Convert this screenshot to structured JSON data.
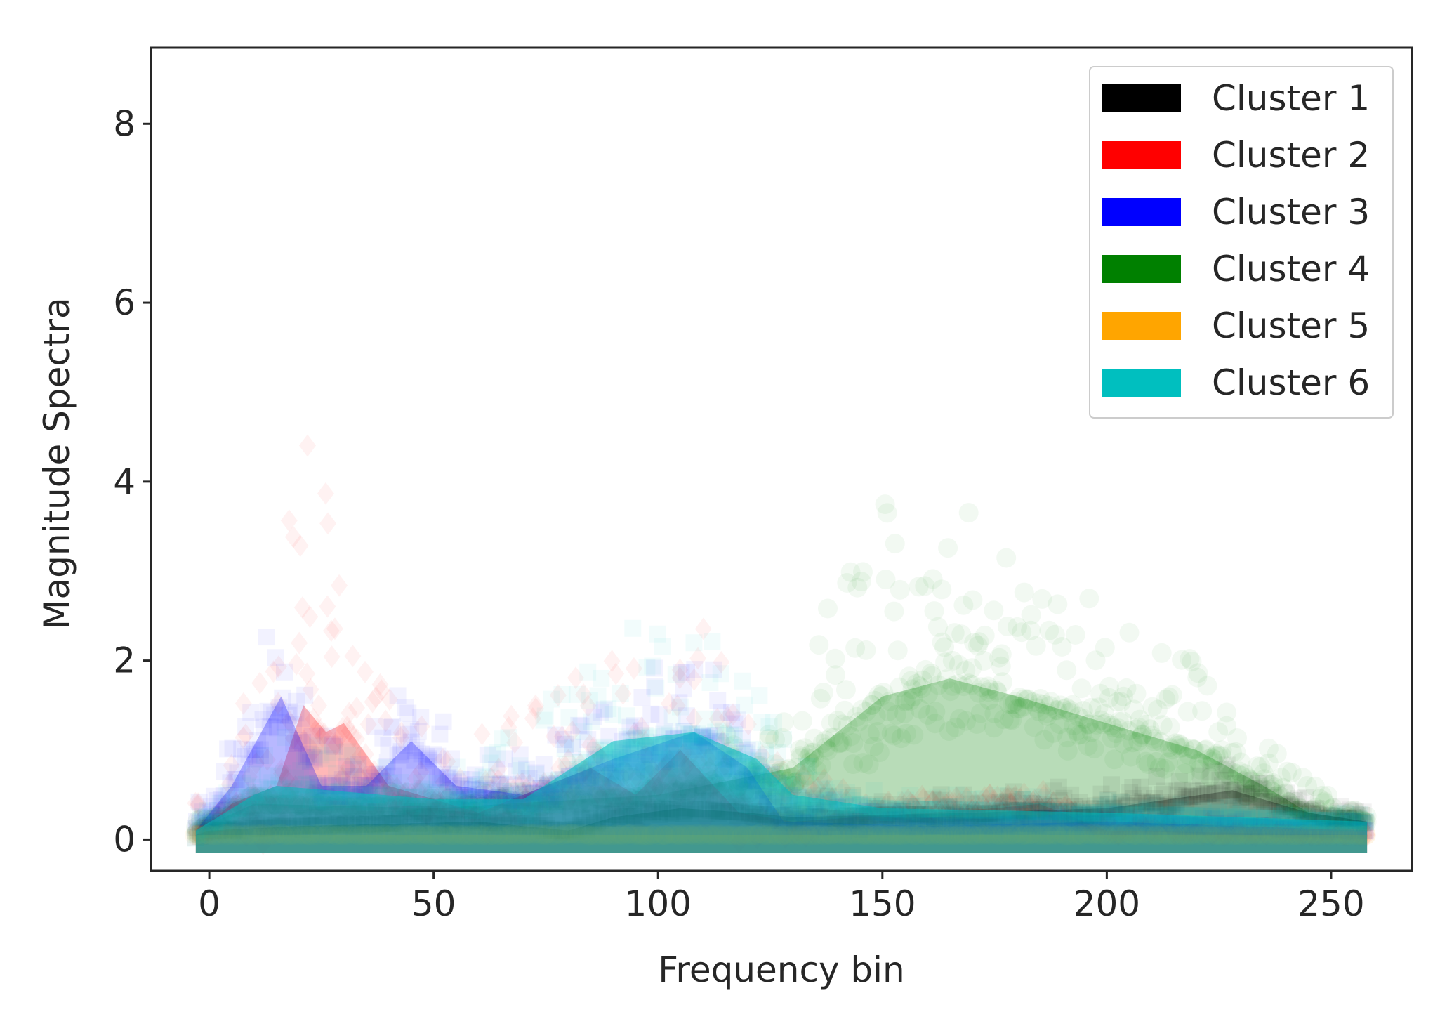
{
  "chart_data": {
    "type": "scatter",
    "xlabel": "Frequency bin",
    "ylabel": "Magnitude Spectra",
    "xlim": [
      -13,
      268
    ],
    "ylim": [
      -0.35,
      8.85
    ],
    "xticks": [
      0,
      50,
      100,
      150,
      200,
      250
    ],
    "yticks": [
      0,
      2,
      4,
      6,
      8
    ],
    "grid": false,
    "legend_position": "top-right",
    "series": [
      {
        "name": "Cluster 1",
        "color": "#000000",
        "marker": "square",
        "profile": [
          [
            -3,
            0.05
          ],
          [
            0,
            0.1
          ],
          [
            20,
            0.15
          ],
          [
            60,
            0.2
          ],
          [
            80,
            0.1
          ],
          [
            90,
            0.25
          ],
          [
            105,
            0.35
          ],
          [
            120,
            0.3
          ],
          [
            130,
            0.25
          ],
          [
            170,
            0.3
          ],
          [
            200,
            0.35
          ],
          [
            228,
            0.55
          ],
          [
            245,
            0.3
          ],
          [
            258,
            0.2
          ]
        ],
        "spread": [
          [
            0,
            0.1
          ],
          [
            100,
            0.2
          ],
          [
            228,
            0.3
          ],
          [
            258,
            0.1
          ]
        ]
      },
      {
        "name": "Cluster 2",
        "color": "#ff0000",
        "marker": "diamond",
        "profile": [
          [
            -3,
            0.05
          ],
          [
            5,
            0.4
          ],
          [
            15,
            0.6
          ],
          [
            21,
            1.5
          ],
          [
            26,
            1.2
          ],
          [
            30,
            1.3
          ],
          [
            40,
            0.6
          ],
          [
            60,
            0.3
          ],
          [
            85,
            0.8
          ],
          [
            95,
            0.5
          ],
          [
            105,
            1.0
          ],
          [
            118,
            0.3
          ],
          [
            130,
            0.2
          ],
          [
            175,
            0.35
          ],
          [
            185,
            0.4
          ],
          [
            200,
            0.1
          ],
          [
            258,
            0.05
          ]
        ],
        "spread": [
          [
            0,
            0.4
          ],
          [
            21,
            3.5
          ],
          [
            30,
            2.0
          ],
          [
            45,
            0.8
          ],
          [
            85,
            1.2
          ],
          [
            105,
            2.0
          ],
          [
            125,
            0.8
          ],
          [
            150,
            0.2
          ],
          [
            258,
            0.1
          ]
        ]
      },
      {
        "name": "Cluster 3",
        "color": "#0000ff",
        "marker": "square",
        "profile": [
          [
            -3,
            0.1
          ],
          [
            5,
            0.6
          ],
          [
            16,
            1.6
          ],
          [
            25,
            0.6
          ],
          [
            35,
            0.6
          ],
          [
            45,
            1.1
          ],
          [
            55,
            0.6
          ],
          [
            70,
            0.5
          ],
          [
            90,
            0.9
          ],
          [
            108,
            1.2
          ],
          [
            120,
            0.8
          ],
          [
            128,
            0.2
          ],
          [
            160,
            0.15
          ],
          [
            200,
            0.2
          ],
          [
            258,
            0.1
          ]
        ],
        "spread": [
          [
            0,
            0.3
          ],
          [
            16,
            1.2
          ],
          [
            30,
            0.4
          ],
          [
            45,
            0.8
          ],
          [
            60,
            0.4
          ],
          [
            90,
            0.8
          ],
          [
            108,
            1.0
          ],
          [
            125,
            0.4
          ],
          [
            160,
            0.1
          ],
          [
            258,
            0.1
          ]
        ]
      },
      {
        "name": "Cluster 4",
        "color": "#008000",
        "marker": "circle",
        "profile": [
          [
            -3,
            0.1
          ],
          [
            10,
            0.4
          ],
          [
            50,
            0.35
          ],
          [
            100,
            0.5
          ],
          [
            130,
            0.8
          ],
          [
            150,
            1.6
          ],
          [
            165,
            1.8
          ],
          [
            180,
            1.6
          ],
          [
            200,
            1.3
          ],
          [
            220,
            1.0
          ],
          [
            235,
            0.6
          ],
          [
            245,
            0.3
          ],
          [
            258,
            0.2
          ]
        ],
        "spread": [
          [
            0,
            0.1
          ],
          [
            100,
            0.3
          ],
          [
            130,
            0.8
          ],
          [
            145,
            2.2
          ],
          [
            165,
            2.0
          ],
          [
            185,
            1.6
          ],
          [
            205,
            1.2
          ],
          [
            225,
            0.9
          ],
          [
            240,
            0.5
          ],
          [
            258,
            0.1
          ]
        ]
      },
      {
        "name": "Cluster 5",
        "color": "#ffa500",
        "marker": "circle",
        "profile": [
          [
            -3,
            0.05
          ],
          [
            258,
            0.05
          ]
        ],
        "spread": [
          [
            -3,
            0.02
          ],
          [
            258,
            0.02
          ]
        ]
      },
      {
        "name": "Cluster 6",
        "color": "#00bfbf",
        "marker": "square",
        "profile": [
          [
            -3,
            0.1
          ],
          [
            10,
            0.5
          ],
          [
            15,
            0.6
          ],
          [
            50,
            0.45
          ],
          [
            70,
            0.45
          ],
          [
            90,
            1.1
          ],
          [
            108,
            1.2
          ],
          [
            122,
            0.9
          ],
          [
            130,
            0.5
          ],
          [
            150,
            0.35
          ],
          [
            200,
            0.3
          ],
          [
            258,
            0.2
          ]
        ],
        "spread": [
          [
            0,
            0.3
          ],
          [
            15,
            0.6
          ],
          [
            50,
            0.3
          ],
          [
            90,
            1.3
          ],
          [
            108,
            1.3
          ],
          [
            122,
            0.8
          ],
          [
            140,
            0.2
          ],
          [
            258,
            0.1
          ]
        ]
      }
    ]
  }
}
